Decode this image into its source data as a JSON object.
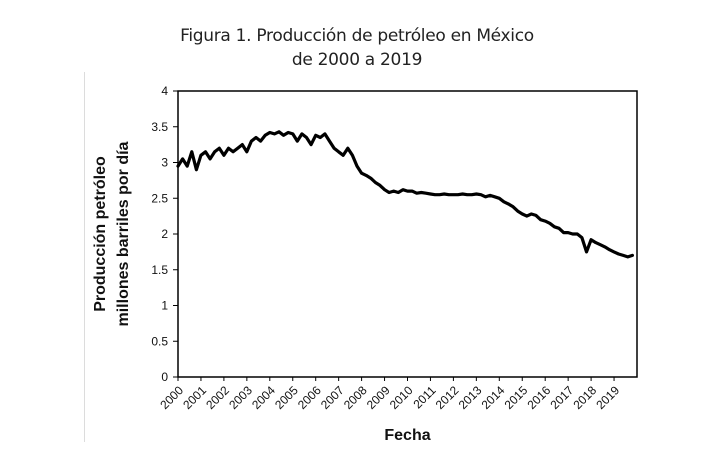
{
  "header": {
    "title_line1": "Figura 1. Producción de petróleo en México",
    "title_line2": "de 2000 a 2019"
  },
  "chart_data": {
    "type": "line",
    "title": "Figura 1. Producción de petróleo en México de 2000 a 2019",
    "xlabel": "Fecha",
    "ylabel_line1": "Producción petróleo",
    "ylabel_line2": "millones barriles por día",
    "xlim": [
      2000,
      2020
    ],
    "ylim": [
      0,
      4
    ],
    "yticks": [
      "0",
      "0.5",
      "1",
      "1.5",
      "2",
      "2.5",
      "3",
      "3.5",
      "4"
    ],
    "xticks": [
      "2000",
      "2001",
      "2002",
      "2003",
      "2004",
      "2005",
      "2006",
      "2007",
      "2008",
      "2009",
      "2010",
      "2011",
      "2012",
      "2013",
      "2014",
      "2015",
      "2016",
      "2017",
      "2018",
      "2019"
    ],
    "grid": false,
    "legend": "none",
    "line_color": "#000000",
    "series": [
      {
        "x": [
          2000.0,
          2000.2,
          2000.4,
          2000.6,
          2000.8,
          2001.0,
          2001.2,
          2001.4,
          2001.6,
          2001.8,
          2002.0,
          2002.2,
          2002.4,
          2002.6,
          2002.8,
          2003.0,
          2003.2,
          2003.4,
          2003.6,
          2003.8,
          2004.0,
          2004.2,
          2004.4,
          2004.6,
          2004.8,
          2005.0,
          2005.2,
          2005.4,
          2005.6,
          2005.8,
          2006.0,
          2006.2,
          2006.4,
          2006.6,
          2006.8,
          2007.0,
          2007.2,
          2007.4,
          2007.6,
          2007.8,
          2008.0,
          2008.2,
          2008.4,
          2008.6,
          2008.8,
          2009.0,
          2009.2,
          2009.4,
          2009.6,
          2009.8,
          2010.0,
          2010.2,
          2010.4,
          2010.6,
          2010.8,
          2011.0,
          2011.2,
          2011.4,
          2011.6,
          2011.8,
          2012.0,
          2012.2,
          2012.4,
          2012.6,
          2012.8,
          2013.0,
          2013.2,
          2013.4,
          2013.6,
          2013.8,
          2014.0,
          2014.2,
          2014.4,
          2014.6,
          2014.8,
          2015.0,
          2015.2,
          2015.4,
          2015.6,
          2015.8,
          2016.0,
          2016.2,
          2016.4,
          2016.6,
          2016.8,
          2017.0,
          2017.2,
          2017.4,
          2017.6,
          2017.8,
          2018.0,
          2018.2,
          2018.4,
          2018.6,
          2018.8,
          2019.0,
          2019.2,
          2019.4,
          2019.6,
          2019.8
        ],
        "values": [
          2.95,
          3.05,
          2.95,
          3.15,
          2.9,
          3.1,
          3.15,
          3.05,
          3.15,
          3.2,
          3.1,
          3.2,
          3.15,
          3.2,
          3.25,
          3.15,
          3.3,
          3.35,
          3.3,
          3.38,
          3.42,
          3.4,
          3.43,
          3.38,
          3.42,
          3.4,
          3.3,
          3.4,
          3.35,
          3.25,
          3.38,
          3.35,
          3.4,
          3.3,
          3.2,
          3.15,
          3.1,
          3.2,
          3.1,
          2.95,
          2.85,
          2.82,
          2.78,
          2.72,
          2.68,
          2.62,
          2.58,
          2.6,
          2.58,
          2.62,
          2.6,
          2.6,
          2.57,
          2.58,
          2.57,
          2.56,
          2.55,
          2.55,
          2.56,
          2.55,
          2.55,
          2.55,
          2.56,
          2.55,
          2.55,
          2.56,
          2.55,
          2.52,
          2.54,
          2.52,
          2.5,
          2.45,
          2.42,
          2.38,
          2.32,
          2.28,
          2.25,
          2.28,
          2.26,
          2.2,
          2.18,
          2.15,
          2.1,
          2.08,
          2.02,
          2.02,
          2.0,
          2.0,
          1.95,
          1.75,
          1.92,
          1.88,
          1.85,
          1.82,
          1.78,
          1.75,
          1.72,
          1.7,
          1.68,
          1.7
        ]
      }
    ]
  }
}
